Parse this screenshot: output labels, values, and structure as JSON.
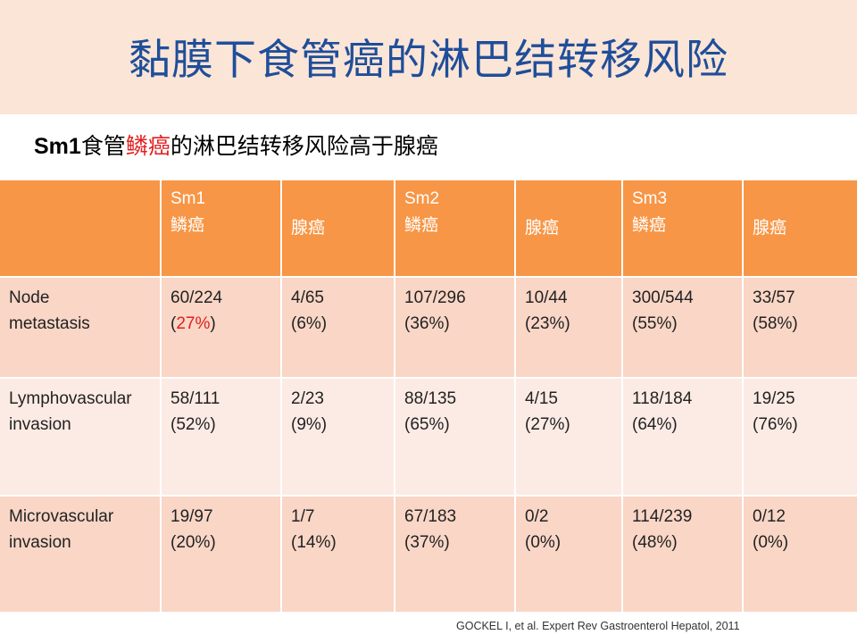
{
  "title": "黏膜下食管癌的淋巴结转移风险",
  "subtitle": {
    "prefix": "Sm1",
    "part1": "食管",
    "highlight": "鳞癌",
    "part2": "的淋巴结转移风险高于腺癌"
  },
  "table": {
    "header": [
      {
        "line1": "",
        "line2": ""
      },
      {
        "line1": "Sm1",
        "line2": "鳞癌"
      },
      {
        "line1": "",
        "line2": "腺癌"
      },
      {
        "line1": "Sm2",
        "line2": "鳞癌"
      },
      {
        "line1": "",
        "line2": "腺癌"
      },
      {
        "line1": "Sm3",
        "line2": "鳞癌"
      },
      {
        "line1": "",
        "line2": "腺癌"
      }
    ],
    "rows": [
      {
        "label1": "Node",
        "label2": "metastasis",
        "cells": [
          {
            "count": "60/224",
            "pct": "(27%)"
          },
          {
            "count": "4/65",
            "pct": "(6%)"
          },
          {
            "count": "107/296",
            "pct": "(36%)"
          },
          {
            "count": "10/44",
            "pct": "(23%)"
          },
          {
            "count": "300/544",
            "pct": "(55%)"
          },
          {
            "count": "33/57",
            "pct": "(58%)"
          }
        ]
      },
      {
        "label1": "Lymphovascular",
        "label2": "invasion",
        "cells": [
          {
            "count": "58/111",
            "pct": "(52%)"
          },
          {
            "count": "2/23",
            "pct": "(9%)"
          },
          {
            "count": "88/135",
            "pct": "(65%)"
          },
          {
            "count": "4/15",
            "pct": "(27%)"
          },
          {
            "count": "118/184",
            "pct": "(64%)"
          },
          {
            "count": "19/25",
            "pct": "(76%)"
          }
        ]
      },
      {
        "label1": "Microvascular",
        "label2": "invasion",
        "cells": [
          {
            "count": "19/97",
            "pct": "(20%)"
          },
          {
            "count": "1/7",
            "pct": "(14%)"
          },
          {
            "count": "67/183",
            "pct": "(37%)"
          },
          {
            "count": "0/2",
            "pct": "(0%)"
          },
          {
            "count": "114/239",
            "pct": "(48%)"
          },
          {
            "count": "0/12",
            "pct": "(0%)"
          }
        ]
      }
    ]
  },
  "citation": "GOCKEL I, et al. Expert  Rev Gastroenterol Hepatol, 2011",
  "colors": {
    "title": "#1f4e9a",
    "title_band": "#fbe5d6",
    "header": "#f79646",
    "row_dark": "#f9d6c6",
    "row_light": "#fcebe4",
    "highlight": "#e02020"
  }
}
